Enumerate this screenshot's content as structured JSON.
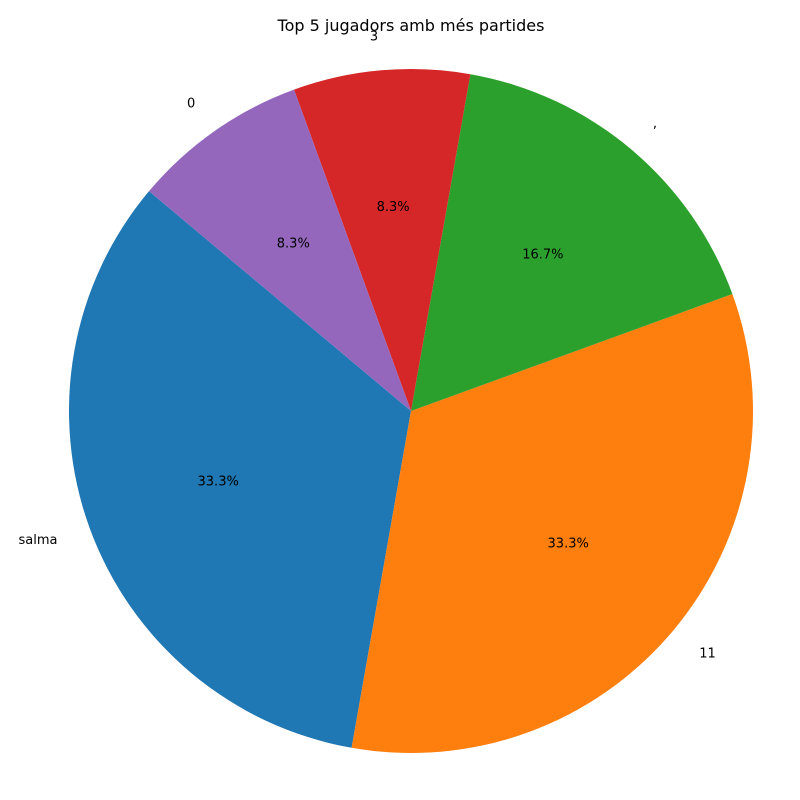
{
  "chart_data": {
    "type": "pie",
    "title": "Top 5 jugadors amb més partides",
    "start_angle_deg": 140,
    "direction": "counterclockwise",
    "slices": [
      {
        "label": "salma",
        "value": 4,
        "pct_text": "33.3%",
        "color": "#1f77b4"
      },
      {
        "label": "11",
        "value": 4,
        "pct_text": "33.3%",
        "color": "#ff7f0e"
      },
      {
        "label": ",",
        "value": 2,
        "pct_text": "16.7%",
        "color": "#2ca02c"
      },
      {
        "label": "3",
        "value": 1,
        "pct_text": "8.3%",
        "color": "#d62728"
      },
      {
        "label": "0",
        "value": 1,
        "pct_text": "8.3%",
        "color": "#9467bd"
      }
    ]
  }
}
